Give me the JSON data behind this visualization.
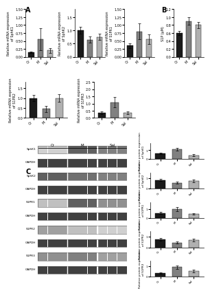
{
  "panel_A": {
    "charts": [
      {
        "ylabel": "Relative mRNA expression\nof SphK1",
        "values": [
          0.15,
          0.55,
          0.2
        ],
        "errors": [
          0.02,
          0.35,
          0.08
        ],
        "ylim": [
          0,
          1.5
        ]
      },
      {
        "ylabel": "Relative mRNA expression\nof SphK2",
        "values": [
          1.0,
          0.65,
          0.75
        ],
        "errors": [
          0.12,
          0.12,
          0.12
        ],
        "ylim": [
          0,
          1.8
        ]
      },
      {
        "ylabel": "Relative mRNA expression\nof S1PR1",
        "values": [
          0.35,
          0.8,
          0.55
        ],
        "errors": [
          0.08,
          0.25,
          0.15
        ],
        "ylim": [
          0,
          1.5
        ]
      },
      {
        "ylabel": "Relative mRNA expression\nof S1PR2",
        "values": [
          1.0,
          0.45,
          1.0
        ],
        "errors": [
          0.15,
          0.15,
          0.2
        ],
        "ylim": [
          0,
          1.8
        ]
      },
      {
        "ylabel": "Relative mRNA expression\nof S1PR3",
        "values": [
          0.35,
          1.1,
          0.35
        ],
        "errors": [
          0.08,
          0.35,
          0.1
        ],
        "ylim": [
          0,
          2.5
        ]
      }
    ]
  },
  "panel_B": {
    "ylabel": "S1P (µM)",
    "values": [
      0.6,
      0.9,
      0.8
    ],
    "errors": [
      0.06,
      0.1,
      0.08
    ],
    "ylim": [
      0,
      1.2
    ]
  },
  "panel_C": {
    "blot_labels": [
      "SphK1",
      "GAPDH",
      "SphK2",
      "GAPDH",
      "S1PR1",
      "GAPDH",
      "S1PR2",
      "GAPDH",
      "S1PR3",
      "GAPDH"
    ],
    "group_labels": [
      "Cr",
      "M",
      "Sal"
    ],
    "charts": [
      {
        "ylabel": "Relative protein expression\nof SphK1",
        "values": [
          0.65,
          1.1,
          0.45
        ],
        "errors": [
          0.08,
          0.18,
          0.1
        ],
        "ylim": [
          0,
          1.8
        ]
      },
      {
        "ylabel": "Relative protein expression\nof SphK2",
        "values": [
          0.8,
          0.55,
          0.7
        ],
        "errors": [
          0.1,
          0.1,
          0.12
        ],
        "ylim": [
          0,
          1.5
        ]
      },
      {
        "ylabel": "Relative protein expression\nof S1PR1",
        "values": [
          0.55,
          1.0,
          0.45
        ],
        "errors": [
          0.1,
          0.2,
          0.08
        ],
        "ylim": [
          0,
          1.8
        ]
      },
      {
        "ylabel": "Relative protein expression\nof S1PR2",
        "values": [
          0.75,
          0.45,
          0.7
        ],
        "errors": [
          0.12,
          0.08,
          0.12
        ],
        "ylim": [
          0,
          1.5
        ]
      },
      {
        "ylabel": "Relative protein expression\nof S1PR3",
        "values": [
          0.35,
          0.9,
          0.55
        ],
        "errors": [
          0.06,
          0.15,
          0.12
        ],
        "ylim": [
          0,
          1.5
        ]
      }
    ]
  },
  "bar_colors": [
    "#1a1a1a",
    "#808080",
    "#b0b0b0"
  ],
  "tick_labels": [
    "Cr",
    "M",
    "Sal"
  ],
  "bg_color": "#ffffff",
  "lane_colors": {
    "SphK1": [
      "#d0d0d0",
      "#606060",
      "#808080"
    ],
    "SphK2": [
      "#606060",
      "#707070",
      "#808080"
    ],
    "S1PR1": [
      "#c0c0c0",
      "#606060",
      "#909090"
    ],
    "S1PR2": [
      "#a0a0a0",
      "#c0c0c0",
      "#d0d0d0"
    ],
    "S1PR3": [
      "#909090",
      "#808080",
      "#a0a0a0"
    ],
    "GAPDH": [
      "#404040",
      "#404040",
      "#404040"
    ]
  }
}
